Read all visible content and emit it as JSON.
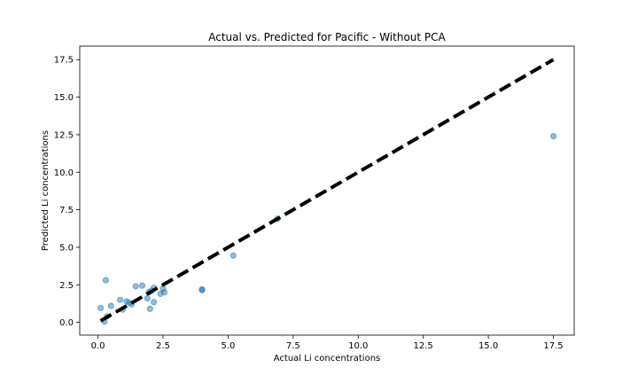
{
  "chart_data": {
    "type": "scatter",
    "title": "Actual vs. Predicted for Pacific - Without PCA",
    "xlabel": "Actual Li concentrations",
    "ylabel": "Predicted Li concentrations",
    "xlim": [
      -0.7,
      18.3
    ],
    "ylim": [
      -0.85,
      18.4
    ],
    "xticks": [
      0.0,
      2.5,
      5.0,
      7.5,
      10.0,
      12.5,
      15.0,
      17.5
    ],
    "xtick_labels": [
      "0.0",
      "2.5",
      "5.0",
      "7.5",
      "10.0",
      "12.5",
      "15.0",
      "17.5"
    ],
    "yticks": [
      0.0,
      2.5,
      5.0,
      7.5,
      10.0,
      12.5,
      15.0,
      17.5
    ],
    "ytick_labels": [
      "0.0",
      "2.5",
      "5.0",
      "7.5",
      "10.0",
      "12.5",
      "15.0",
      "17.5"
    ],
    "grid": false,
    "point_color": "#1f77b4",
    "point_alpha": 0.5,
    "reference_line": {
      "x": [
        0.1,
        17.5
      ],
      "y": [
        0.1,
        17.5
      ],
      "color": "#000000",
      "style": "dashed"
    },
    "points": [
      {
        "x": 0.1,
        "y": 0.95
      },
      {
        "x": 0.3,
        "y": 2.8
      },
      {
        "x": 0.25,
        "y": 0.05
      },
      {
        "x": 0.35,
        "y": 0.4
      },
      {
        "x": 0.5,
        "y": 1.1
      },
      {
        "x": 0.85,
        "y": 1.5
      },
      {
        "x": 0.95,
        "y": 0.85
      },
      {
        "x": 1.1,
        "y": 1.4
      },
      {
        "x": 1.2,
        "y": 1.3
      },
      {
        "x": 1.3,
        "y": 1.2
      },
      {
        "x": 1.45,
        "y": 2.4
      },
      {
        "x": 1.7,
        "y": 2.45
      },
      {
        "x": 1.9,
        "y": 1.6
      },
      {
        "x": 1.95,
        "y": 2.0
      },
      {
        "x": 2.0,
        "y": 0.9
      },
      {
        "x": 2.05,
        "y": 2.1
      },
      {
        "x": 2.15,
        "y": 2.3
      },
      {
        "x": 2.15,
        "y": 1.35
      },
      {
        "x": 2.4,
        "y": 1.9
      },
      {
        "x": 2.5,
        "y": 2.25
      },
      {
        "x": 2.55,
        "y": 2.0
      },
      {
        "x": 4.0,
        "y": 2.2
      },
      {
        "x": 4.0,
        "y": 2.15
      },
      {
        "x": 5.2,
        "y": 4.45
      },
      {
        "x": 6.9,
        "y": 6.9
      },
      {
        "x": 17.5,
        "y": 12.4
      }
    ]
  }
}
